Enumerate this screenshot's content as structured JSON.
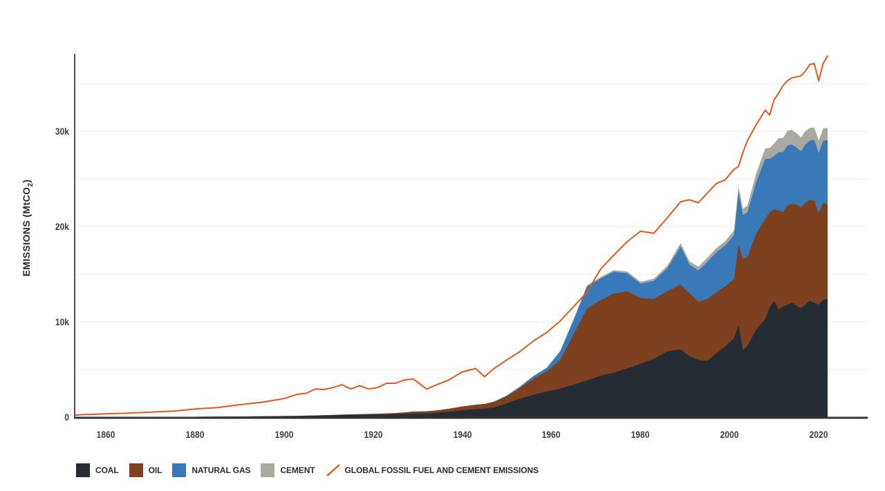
{
  "page": {
    "background": "#ffffff"
  },
  "chart_data": {
    "type": "area",
    "stacked": true,
    "title": "",
    "ylabel": {
      "prefix": "EMISSIONS (MtCO",
      "sub": "2",
      "suffix": ")"
    },
    "xlabel": "",
    "x_domain": [
      1853,
      2022
    ],
    "ylim": [
      0,
      38200
    ],
    "grid": {
      "step": 5000,
      "max": 35000,
      "color": "#ececec"
    },
    "axis_colors": {
      "left": "#4d4d4d",
      "bottom": "#333333"
    },
    "x_ticks": [
      1860,
      1880,
      1900,
      1920,
      1940,
      1960,
      1980,
      2000,
      2020
    ],
    "y_ticks": [
      {
        "value": 0,
        "label": "0"
      },
      {
        "value": 10000,
        "label": "10k"
      },
      {
        "value": 20000,
        "label": "20k"
      },
      {
        "value": 30000,
        "label": "30k"
      }
    ],
    "legend_position": "bottom-left",
    "years": [
      1853,
      1855,
      1860,
      1865,
      1870,
      1875,
      1880,
      1885,
      1890,
      1895,
      1900,
      1903,
      1905,
      1907,
      1909,
      1911,
      1913,
      1915,
      1917,
      1919,
      1921,
      1923,
      1925,
      1927,
      1929,
      1932,
      1934,
      1937,
      1940,
      1943,
      1945,
      1947,
      1950,
      1953,
      1956,
      1959,
      1962,
      1965,
      1968,
      1971,
      1974,
      1977,
      1980,
      1983,
      1986,
      1989,
      1991,
      1993,
      1995,
      1997,
      1999,
      2001,
      2002,
      2003,
      2004,
      2006,
      2008,
      2009,
      2010,
      2011,
      2012,
      2013,
      2014,
      2015,
      2016,
      2017,
      2018,
      2019,
      2020,
      2021,
      2022
    ],
    "series": [
      {
        "name": "COAL",
        "color": "#252c33",
        "values": [
          5,
          8,
          12,
          16,
          22,
          28,
          36,
          46,
          60,
          76,
          95,
          112,
          125,
          142,
          160,
          185,
          215,
          230,
          245,
          255,
          265,
          285,
          305,
          340,
          385,
          400,
          435,
          560,
          720,
          830,
          880,
          990,
          1450,
          1950,
          2350,
          2700,
          3000,
          3400,
          3850,
          4350,
          4650,
          5100,
          5600,
          6100,
          6900,
          7100,
          6400,
          6000,
          5900,
          6700,
          7400,
          8300,
          9600,
          7000,
          7500,
          9200,
          10300,
          11500,
          12200,
          11300,
          11600,
          11800,
          12000,
          11700,
          11450,
          11800,
          12200,
          12000,
          11800,
          12300,
          12450
        ]
      },
      {
        "name": "OIL",
        "color": "#7d4120",
        "values": [
          0,
          0,
          0,
          0,
          0,
          2,
          3,
          5,
          8,
          12,
          18,
          22,
          26,
          30,
          35,
          42,
          48,
          55,
          65,
          75,
          85,
          105,
          125,
          155,
          195,
          215,
          255,
          320,
          395,
          470,
          500,
          590,
          700,
          1100,
          1700,
          2100,
          3000,
          5300,
          7550,
          7900,
          8300,
          8100,
          6900,
          6300,
          6300,
          6800,
          6600,
          6100,
          6500,
          6400,
          6300,
          6200,
          8500,
          9600,
          9300,
          10100,
          10500,
          10000,
          9600,
          10400,
          9900,
          10400,
          10400,
          10600,
          10550,
          10700,
          10600,
          10700,
          9600,
          10200,
          9850
        ]
      },
      {
        "name": "NATURAL GAS",
        "color": "#3a79b8",
        "values": [
          0,
          0,
          0,
          0,
          0,
          0,
          0,
          0,
          0,
          0,
          0,
          0,
          0,
          0,
          0,
          0,
          0,
          0,
          0,
          0,
          0,
          0,
          0,
          0,
          0,
          0,
          0,
          0,
          0,
          0,
          0,
          30,
          100,
          150,
          250,
          350,
          900,
          1500,
          2300,
          2300,
          2300,
          1900,
          1500,
          1900,
          2400,
          4000,
          3000,
          3300,
          3900,
          4200,
          4300,
          4600,
          5500,
          4600,
          4700,
          5400,
          6300,
          5600,
          5600,
          6100,
          6300,
          6300,
          6200,
          6000,
          5900,
          6100,
          6200,
          6400,
          6300,
          6500,
          6800
        ]
      },
      {
        "name": "CEMENT",
        "color": "#a9a9a2",
        "values": [
          0,
          0,
          0,
          0,
          0,
          0,
          0,
          0,
          0,
          0,
          0,
          0,
          0,
          0,
          0,
          0,
          0,
          0,
          0,
          0,
          0,
          0,
          0,
          0,
          0,
          0,
          0,
          0,
          0,
          0,
          0,
          0,
          30,
          40,
          50,
          60,
          80,
          100,
          120,
          140,
          170,
          190,
          200,
          220,
          280,
          350,
          360,
          380,
          420,
          440,
          450,
          500,
          600,
          650,
          700,
          900,
          1100,
          1150,
          1300,
          1450,
          1500,
          1550,
          1550,
          1500,
          1450,
          1400,
          1350,
          1300,
          1300,
          1300,
          1250
        ]
      }
    ],
    "line_series": {
      "name": "GLOBAL FOSSIL FUEL AND CEMENT EMISSIONS",
      "color": "#e2571c",
      "values": [
        210,
        260,
        340,
        420,
        530,
        620,
        850,
        1000,
        1300,
        1550,
        1950,
        2400,
        2500,
        2950,
        2900,
        3100,
        3400,
        2950,
        3300,
        2950,
        3100,
        3550,
        3550,
        3900,
        4000,
        2950,
        3350,
        3900,
        4750,
        5100,
        4250,
        5050,
        6000,
        6900,
        8000,
        8900,
        10100,
        11600,
        13100,
        15500,
        17000,
        18400,
        19500,
        19300,
        20900,
        22600,
        22800,
        22500,
        23500,
        24500,
        24900,
        26000,
        26300,
        27800,
        29000,
        30700,
        32200,
        31700,
        33300,
        34000,
        34800,
        35300,
        35600,
        35700,
        35800,
        36300,
        37000,
        37100,
        35300,
        37100,
        37900
      ]
    }
  }
}
